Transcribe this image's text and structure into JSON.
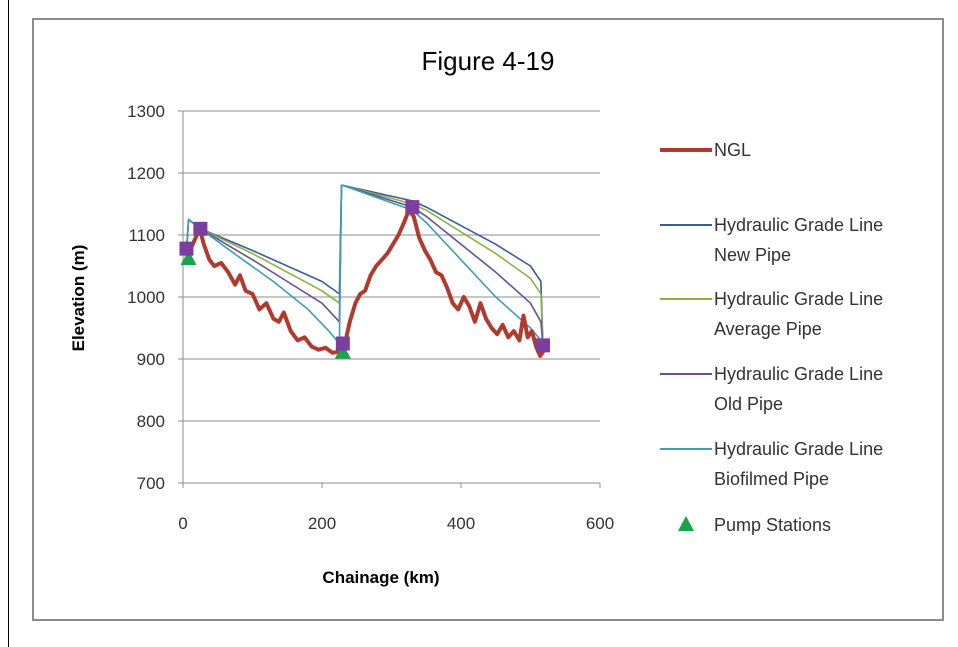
{
  "chart_data": {
    "type": "line",
    "title": "Figure 4-19",
    "xlabel": "Chainage (km)",
    "ylabel": "Elevation (m)",
    "xlim": [
      0,
      600
    ],
    "ylim": [
      700,
      1300
    ],
    "xticks": [
      "0",
      "200",
      "400",
      "600"
    ],
    "yticks": [
      "1300",
      "1200",
      "1100",
      "1000",
      "900",
      "800",
      "700"
    ],
    "grid": "horizontal",
    "legend_position": "right",
    "series": [
      {
        "name": "NGL",
        "color": "#b03a2e",
        "x": [
          5,
          12,
          18,
          24,
          30,
          38,
          45,
          55,
          65,
          75,
          82,
          90,
          100,
          110,
          120,
          130,
          138,
          145,
          155,
          165,
          175,
          185,
          195,
          205,
          215,
          225,
          232,
          240,
          248,
          255,
          262,
          270,
          278,
          286,
          294,
          302,
          310,
          318,
          325,
          332,
          340,
          348,
          356,
          364,
          372,
          380,
          388,
          396,
          404,
          412,
          420,
          428,
          436,
          444,
          452,
          460,
          468,
          476,
          484,
          490,
          496,
          502,
          508,
          514,
          520
        ],
        "y": [
          1075,
          1080,
          1095,
          1110,
          1085,
          1060,
          1050,
          1055,
          1040,
          1020,
          1035,
          1010,
          1005,
          980,
          990,
          965,
          960,
          975,
          945,
          930,
          935,
          920,
          915,
          918,
          910,
          912,
          920,
          960,
          990,
          1005,
          1010,
          1035,
          1050,
          1060,
          1070,
          1085,
          1100,
          1120,
          1140,
          1130,
          1095,
          1075,
          1060,
          1040,
          1035,
          1015,
          990,
          980,
          1000,
          985,
          960,
          990,
          965,
          950,
          940,
          955,
          935,
          945,
          930,
          970,
          935,
          945,
          920,
          905,
          915
        ]
      },
      {
        "name": "Hydraulic Grade Line New Pipe",
        "color": "#3a5c9e",
        "x": [
          5,
          8,
          25,
          100,
          150,
          200,
          225,
          228,
          230,
          330,
          350,
          400,
          450,
          500,
          515,
          518
        ],
        "y": [
          1075,
          1125,
          1110,
          1075,
          1050,
          1025,
          1005,
          1180,
          1180,
          1155,
          1145,
          1115,
          1085,
          1050,
          1025,
          920
        ]
      },
      {
        "name": "Hydraulic Grade Line Average Pipe",
        "color": "#8db33f",
        "x": [
          5,
          8,
          25,
          100,
          150,
          200,
          225,
          228,
          230,
          330,
          350,
          400,
          450,
          500,
          515,
          518
        ],
        "y": [
          1075,
          1125,
          1110,
          1070,
          1040,
          1010,
          990,
          1180,
          1180,
          1150,
          1140,
          1105,
          1070,
          1030,
          1005,
          920
        ]
      },
      {
        "name": "Hydraulic Grade Line Old Pipe",
        "color": "#6a4f9a",
        "x": [
          5,
          8,
          25,
          100,
          150,
          200,
          225,
          228,
          230,
          330,
          350,
          400,
          450,
          500,
          515,
          518
        ],
        "y": [
          1075,
          1125,
          1110,
          1060,
          1025,
          990,
          960,
          1180,
          1180,
          1145,
          1130,
          1085,
          1040,
          990,
          960,
          920
        ]
      },
      {
        "name": "Hydraulic Grade Line Biofilmed Pipe",
        "color": "#3a9fb5",
        "x": [
          5,
          8,
          25,
          80,
          130,
          180,
          210,
          225,
          228,
          230,
          330,
          350,
          400,
          450,
          500,
          515,
          518
        ],
        "y": [
          1075,
          1125,
          1110,
          1065,
          1025,
          980,
          945,
          925,
          1180,
          1180,
          1140,
          1120,
          1060,
          1000,
          950,
          930,
          920
        ]
      }
    ],
    "markers": [
      {
        "name": "Pump Stations",
        "shape": "triangle",
        "color": "#1aa34a",
        "points": [
          [
            8,
            1063
          ],
          [
            230,
            912
          ]
        ]
      },
      {
        "name": "",
        "shape": "square",
        "color": "#7b3fa0",
        "points": [
          [
            5,
            1078
          ],
          [
            25,
            1110
          ],
          [
            230,
            925
          ],
          [
            330,
            1145
          ],
          [
            518,
            922
          ]
        ]
      }
    ]
  }
}
